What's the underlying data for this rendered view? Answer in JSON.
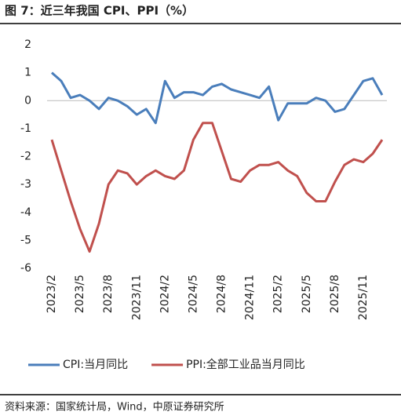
{
  "chart_data": {
    "type": "line",
    "title": "图 7：近三年我国 CPI、PPI（%）",
    "source": "资料来源：国家统计局，Wind，中原证券研究所",
    "categories": [
      "2023/2",
      null,
      null,
      "2023/5",
      null,
      null,
      "2023/8",
      null,
      null,
      "2023/11",
      null,
      null,
      "2024/2",
      null,
      null,
      "2024/5",
      null,
      null,
      "2024/8",
      null,
      null,
      "2024/11",
      null,
      null,
      "2025/2",
      null,
      null,
      "2025/5",
      null,
      null,
      "2025/8",
      null,
      null,
      "2025/11",
      null,
      null
    ],
    "series": [
      {
        "name": "CPI:当月同比",
        "color": "#4a7ebb",
        "values": [
          1.0,
          0.7,
          0.1,
          0.2,
          0.0,
          -0.3,
          0.1,
          0.0,
          -0.2,
          -0.5,
          -0.3,
          -0.8,
          0.7,
          0.1,
          0.3,
          0.3,
          0.2,
          0.5,
          0.6,
          0.4,
          0.3,
          0.2,
          0.1,
          0.5,
          -0.7,
          -0.1,
          -0.1,
          -0.1,
          0.1,
          0.0,
          -0.4,
          -0.3,
          0.2,
          0.7,
          0.8,
          0.2
        ]
      },
      {
        "name": "PPI:全部工业品当月同比",
        "color": "#c0504d",
        "values": [
          -1.4,
          -2.5,
          -3.6,
          -4.6,
          -5.4,
          -4.4,
          -3.0,
          -2.5,
          -2.6,
          -3.0,
          -2.7,
          -2.5,
          -2.7,
          -2.8,
          -2.5,
          -1.4,
          -0.8,
          -0.8,
          -1.8,
          -2.8,
          -2.9,
          -2.5,
          -2.3,
          -2.3,
          -2.2,
          -2.5,
          -2.7,
          -3.3,
          -3.6,
          -3.6,
          -2.9,
          -2.3,
          -2.1,
          -2.2,
          -1.9,
          -1.4
        ]
      }
    ],
    "ylim": [
      -6,
      2
    ],
    "yticks": [
      2,
      1,
      0,
      -1,
      -2,
      -3,
      -4,
      -5,
      -6
    ],
    "legend": "bottom"
  }
}
